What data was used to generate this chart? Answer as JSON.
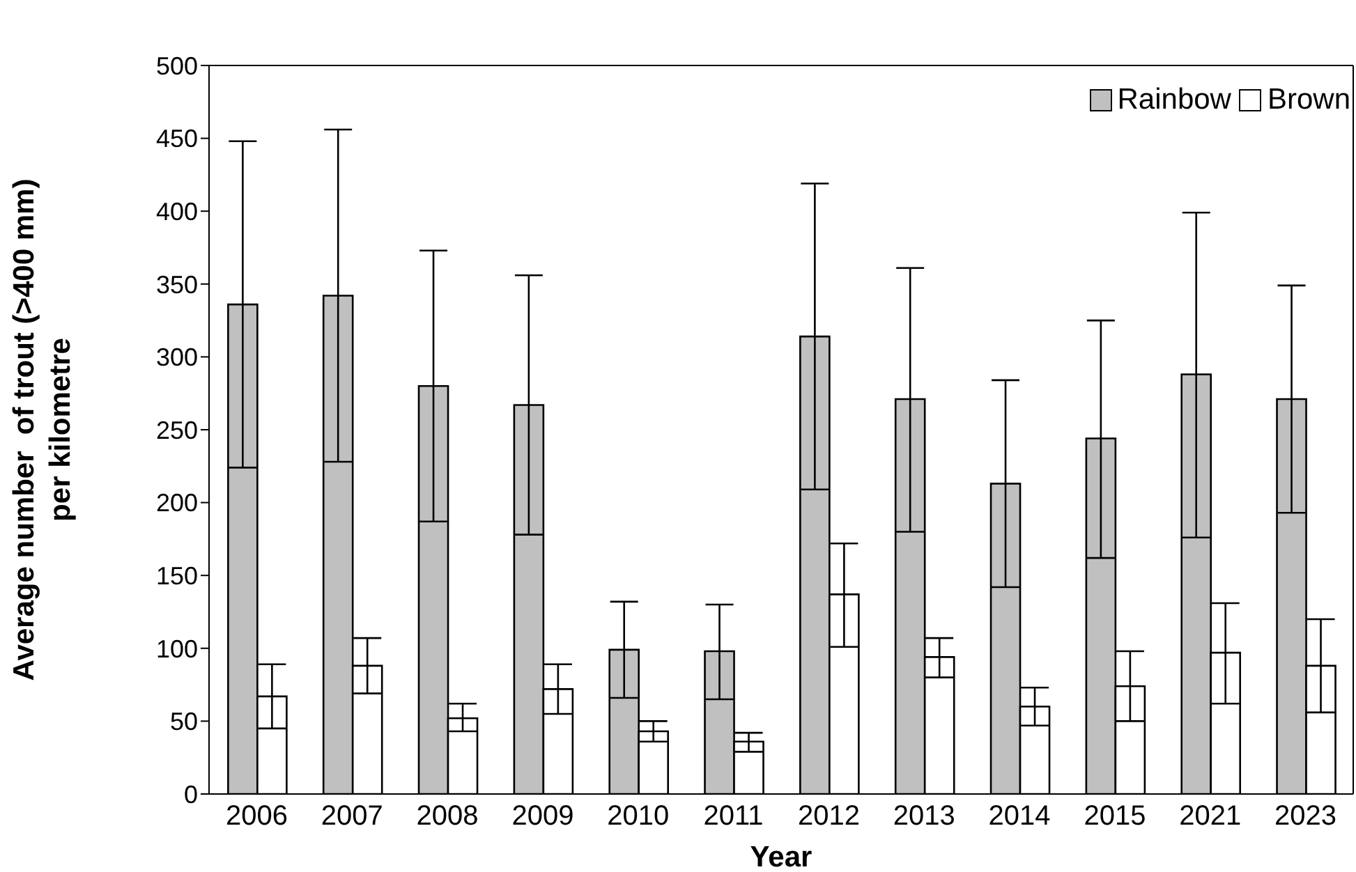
{
  "chart_data": {
    "type": "bar",
    "xlabel": "Year",
    "ylabel": "Average number  of trout (>400 mm)\nper kilometre",
    "categories": [
      "2006",
      "2007",
      "2008",
      "2009",
      "2010",
      "2011",
      "2012",
      "2013",
      "2014",
      "2015",
      "2021",
      "2023"
    ],
    "series": [
      {
        "name": "Rainbow",
        "color": "#c0c0c0",
        "values": [
          336,
          342,
          280,
          267,
          99,
          98,
          314,
          271,
          213,
          244,
          288,
          271
        ],
        "errors": [
          [
            224,
            448
          ],
          [
            228,
            456
          ],
          [
            187,
            373
          ],
          [
            178,
            356
          ],
          [
            66,
            132
          ],
          [
            65,
            130
          ],
          [
            209,
            419
          ],
          [
            180,
            361
          ],
          [
            142,
            284
          ],
          [
            162,
            325
          ],
          [
            176,
            399
          ],
          [
            193,
            349
          ]
        ]
      },
      {
        "name": "Brown",
        "color": "#ffffff",
        "values": [
          67,
          88,
          52,
          72,
          43,
          36,
          137,
          94,
          60,
          74,
          97,
          88
        ],
        "errors": [
          [
            45,
            89
          ],
          [
            69,
            107
          ],
          [
            43,
            62
          ],
          [
            55,
            89
          ],
          [
            36,
            50
          ],
          [
            29,
            42
          ],
          [
            101,
            172
          ],
          [
            80,
            107
          ],
          [
            47,
            73
          ],
          [
            50,
            98
          ],
          [
            62,
            131
          ],
          [
            56,
            120
          ]
        ]
      }
    ],
    "ylim": [
      0,
      500
    ],
    "yticks": [
      0,
      50,
      100,
      150,
      200,
      250,
      300,
      350,
      400,
      450,
      500
    ],
    "legend": "top right"
  }
}
